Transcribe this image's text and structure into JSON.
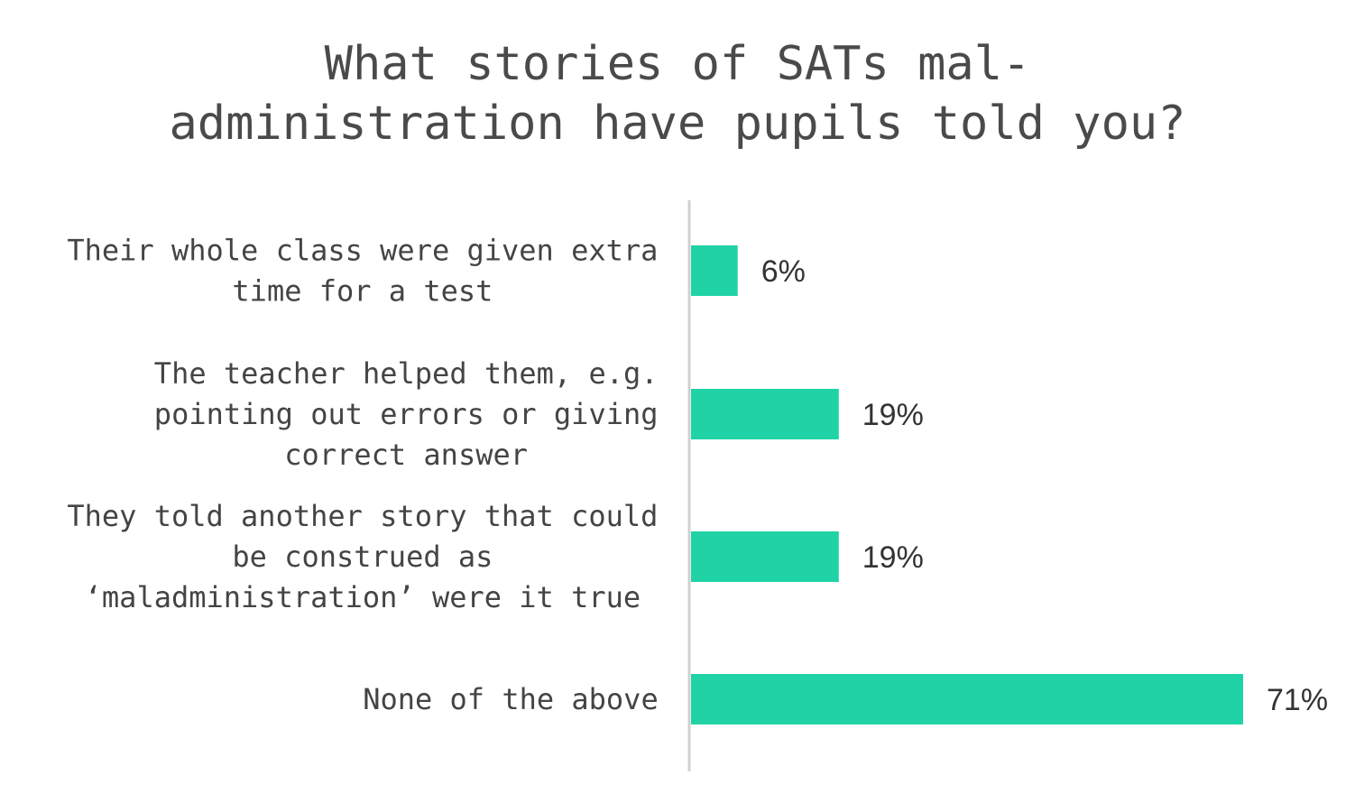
{
  "chart_data": {
    "type": "bar",
    "orientation": "horizontal",
    "title": "What stories of SATs mal-\nadministration have pupils told you?",
    "categories": [
      "Their whole class were given extra\ntime for a test",
      "The teacher helped them, e.g.\npointing out errors or giving\ncorrect answer",
      "They told another story that could\nbe construed as\n‘maladministration’ were it true",
      "None of the above"
    ],
    "values": [
      6,
      19,
      19,
      71
    ],
    "value_labels": [
      "6%",
      "19%",
      "19%",
      "71%"
    ],
    "xlim": [
      0,
      71
    ],
    "grid": false,
    "legend": "none",
    "bar_color": "#20d3a6",
    "axis_color": "#d0d0d0"
  }
}
